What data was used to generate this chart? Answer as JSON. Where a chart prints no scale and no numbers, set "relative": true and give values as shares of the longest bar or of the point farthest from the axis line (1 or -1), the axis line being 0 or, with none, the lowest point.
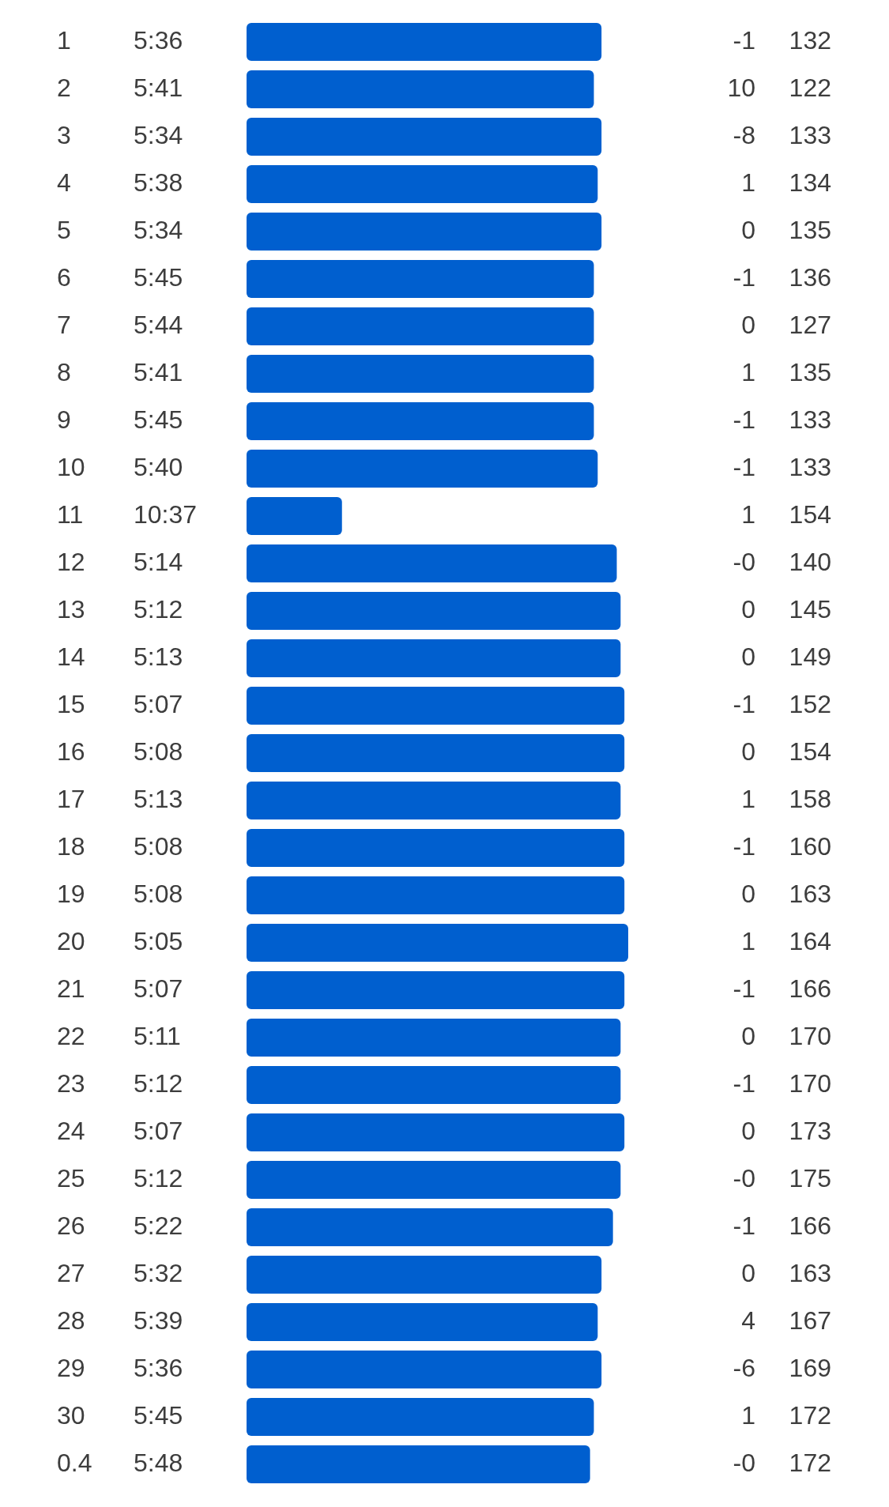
{
  "chart_data": {
    "type": "bar",
    "annotations": [
      "5:36",
      "-1",
      "132",
      "5:41",
      "10",
      "122",
      "5:34",
      "-8",
      "133",
      "5:38",
      "1",
      "134",
      "5:34",
      "0",
      "135",
      "5:45",
      "-1",
      "136",
      "5:44",
      "0",
      "127",
      "5:41",
      "1",
      "135",
      "5:45",
      "-1",
      "133",
      "5:40",
      "-1",
      "133",
      "10:37",
      "1",
      "154",
      "5:14",
      "-0",
      "140",
      "5:12",
      "0",
      "145",
      "5:13",
      "0",
      "149",
      "5:07",
      "-1",
      "152",
      "5:08",
      "0",
      "154",
      "5:13",
      "1",
      "158",
      "5:08",
      "-1",
      "160",
      "5:08",
      "0",
      "163",
      "5:05",
      "1",
      "164",
      "5:07",
      "-1",
      "166",
      "5:11",
      "0",
      "170",
      "5:12",
      "-1",
      "170",
      "5:07",
      "0",
      "173",
      "5:12",
      "-0",
      "175",
      "5:22",
      "-1",
      "166",
      "5:32",
      "0",
      "163",
      "5:39",
      "4",
      "167",
      "5:36",
      "-6",
      "169",
      "5:45",
      "1",
      "172",
      "5:48",
      "-0",
      "172"
    ],
    "orientation": "horizontal",
    "relative": true,
    "color": "#005fcf",
    "categories": [
      "1",
      "2",
      "3",
      "4",
      "5",
      "6",
      "7",
      "8",
      "9",
      "10",
      "11",
      "12",
      "13",
      "14",
      "15",
      "16",
      "17",
      "18",
      "19",
      "20",
      "21",
      "22",
      "23",
      "24",
      "25",
      "26",
      "27",
      "28",
      "29",
      "30",
      "0.4"
    ],
    "values": [
      0.93,
      0.91,
      0.93,
      0.92,
      0.93,
      0.91,
      0.91,
      0.91,
      0.91,
      0.92,
      0.25,
      0.97,
      0.98,
      0.98,
      0.99,
      0.99,
      0.98,
      0.99,
      0.99,
      1,
      0.99,
      0.98,
      0.98,
      0.99,
      0.98,
      0.96,
      0.93,
      0.92,
      0.93,
      0.91,
      0.9
    ]
  }
}
